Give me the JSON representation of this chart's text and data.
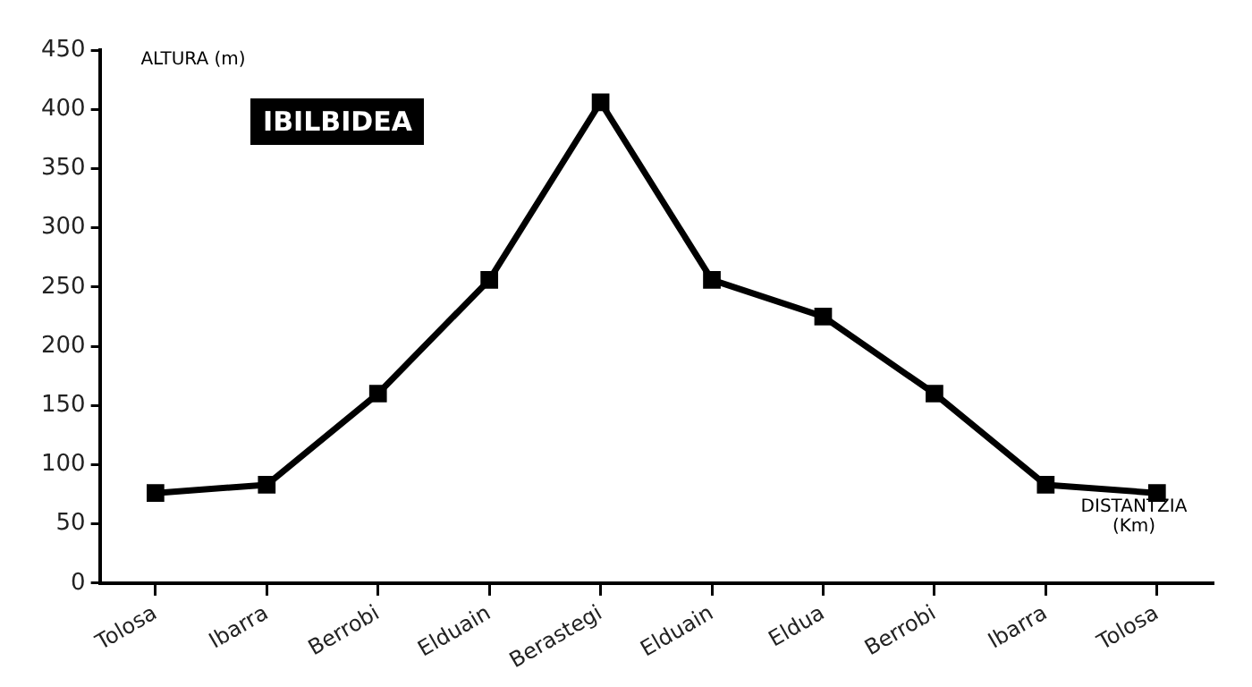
{
  "chart_data": {
    "type": "line",
    "title": "IBILBIDEA",
    "ylabel": "ALTURA (m)",
    "xlabel": "DISTANTZIA (Km)",
    "categories": [
      "Tolosa",
      "Ibarra",
      "Berrobi",
      "Elduain",
      "Berastegi",
      "Elduain",
      "Eldua",
      "Berrobi",
      "Ibarra",
      "Tolosa"
    ],
    "series": [
      {
        "color": "#000000",
        "values": [
          76,
          83,
          160,
          256,
          406,
          256,
          225,
          160,
          83,
          76
        ]
      }
    ],
    "ylim": [
      0,
      450
    ],
    "yticks": [
      0,
      50,
      100,
      150,
      200,
      250,
      300,
      350,
      400,
      450
    ],
    "grid": false,
    "legend": false,
    "marker": "square",
    "line_style": "solid"
  }
}
